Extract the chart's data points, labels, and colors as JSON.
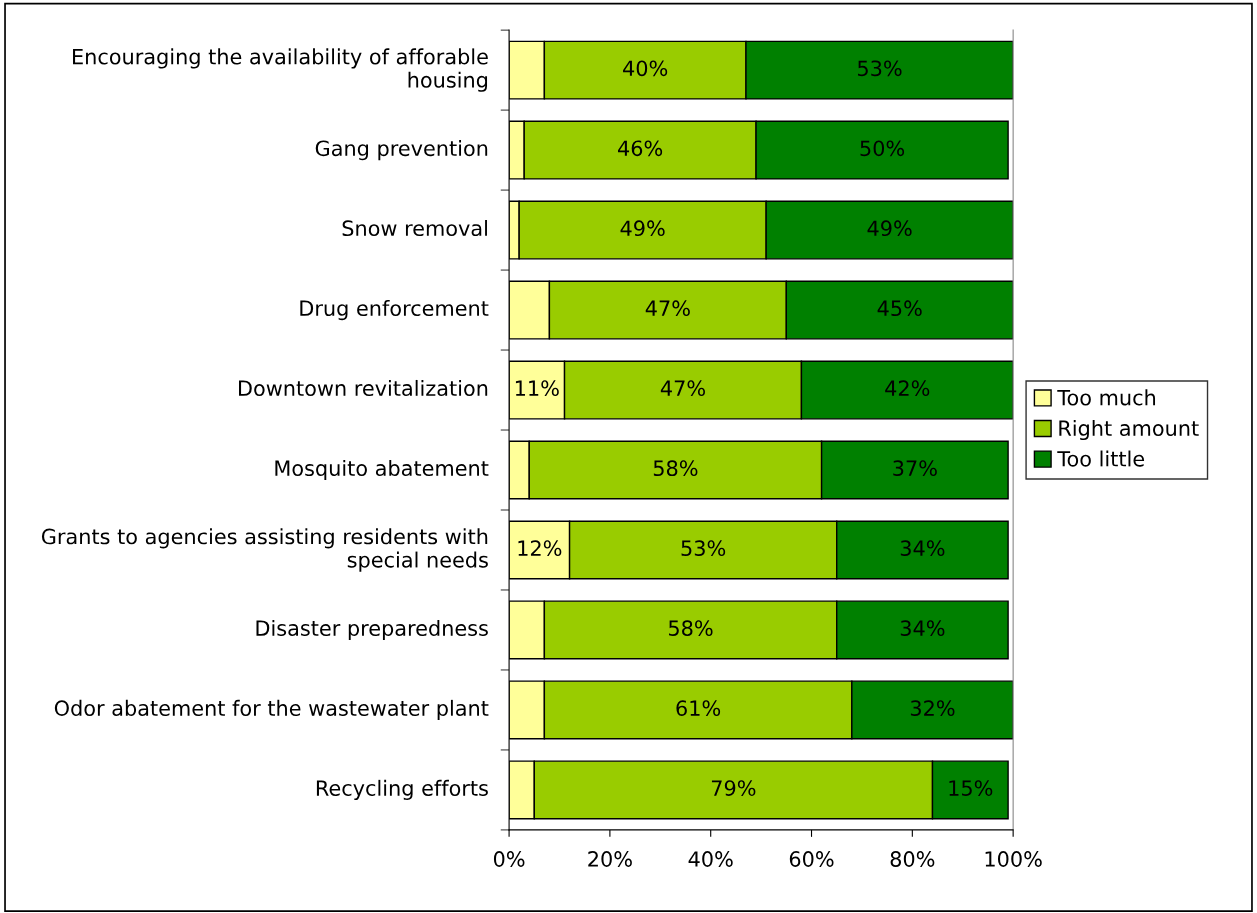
{
  "chart_data": {
    "type": "bar",
    "orientation": "horizontal",
    "stacked": true,
    "categories": [
      "Encouraging the availability of afforable housing",
      "Gang prevention",
      "Snow removal",
      "Drug enforcement",
      "Downtown revitalization",
      "Mosquito abatement",
      "Grants to agencies assisting residents with special needs",
      "Disaster preparedness",
      "Odor abatement for the wastewater plant",
      "Recycling efforts"
    ],
    "series": [
      {
        "name": "Too much",
        "color": "#ffff99",
        "values": [
          7,
          3,
          2,
          8,
          11,
          4,
          12,
          7,
          7,
          5
        ],
        "value_labels": [
          null,
          null,
          null,
          null,
          "11%",
          null,
          "12%",
          null,
          null,
          null
        ]
      },
      {
        "name": "Right amount",
        "color": "#99cc00",
        "values": [
          40,
          46,
          49,
          47,
          47,
          58,
          53,
          58,
          61,
          79
        ],
        "value_labels": [
          "40%",
          "46%",
          "49%",
          "47%",
          "47%",
          "58%",
          "53%",
          "58%",
          "61%",
          "79%"
        ]
      },
      {
        "name": "Too little",
        "color": "#008000",
        "values": [
          53,
          50,
          49,
          45,
          42,
          37,
          34,
          34,
          32,
          15
        ],
        "value_labels": [
          "53%",
          "50%",
          "49%",
          "45%",
          "42%",
          "37%",
          "34%",
          "34%",
          "32%",
          "15%"
        ]
      }
    ],
    "xlim": [
      0,
      100
    ],
    "xticks": [
      {
        "value": 0,
        "label": "0%"
      },
      {
        "value": 20,
        "label": "20%"
      },
      {
        "value": 40,
        "label": "40%"
      },
      {
        "value": 60,
        "label": "60%"
      },
      {
        "value": 80,
        "label": "80%"
      },
      {
        "value": 100,
        "label": "100%"
      }
    ],
    "grid": false,
    "legend": "right"
  }
}
